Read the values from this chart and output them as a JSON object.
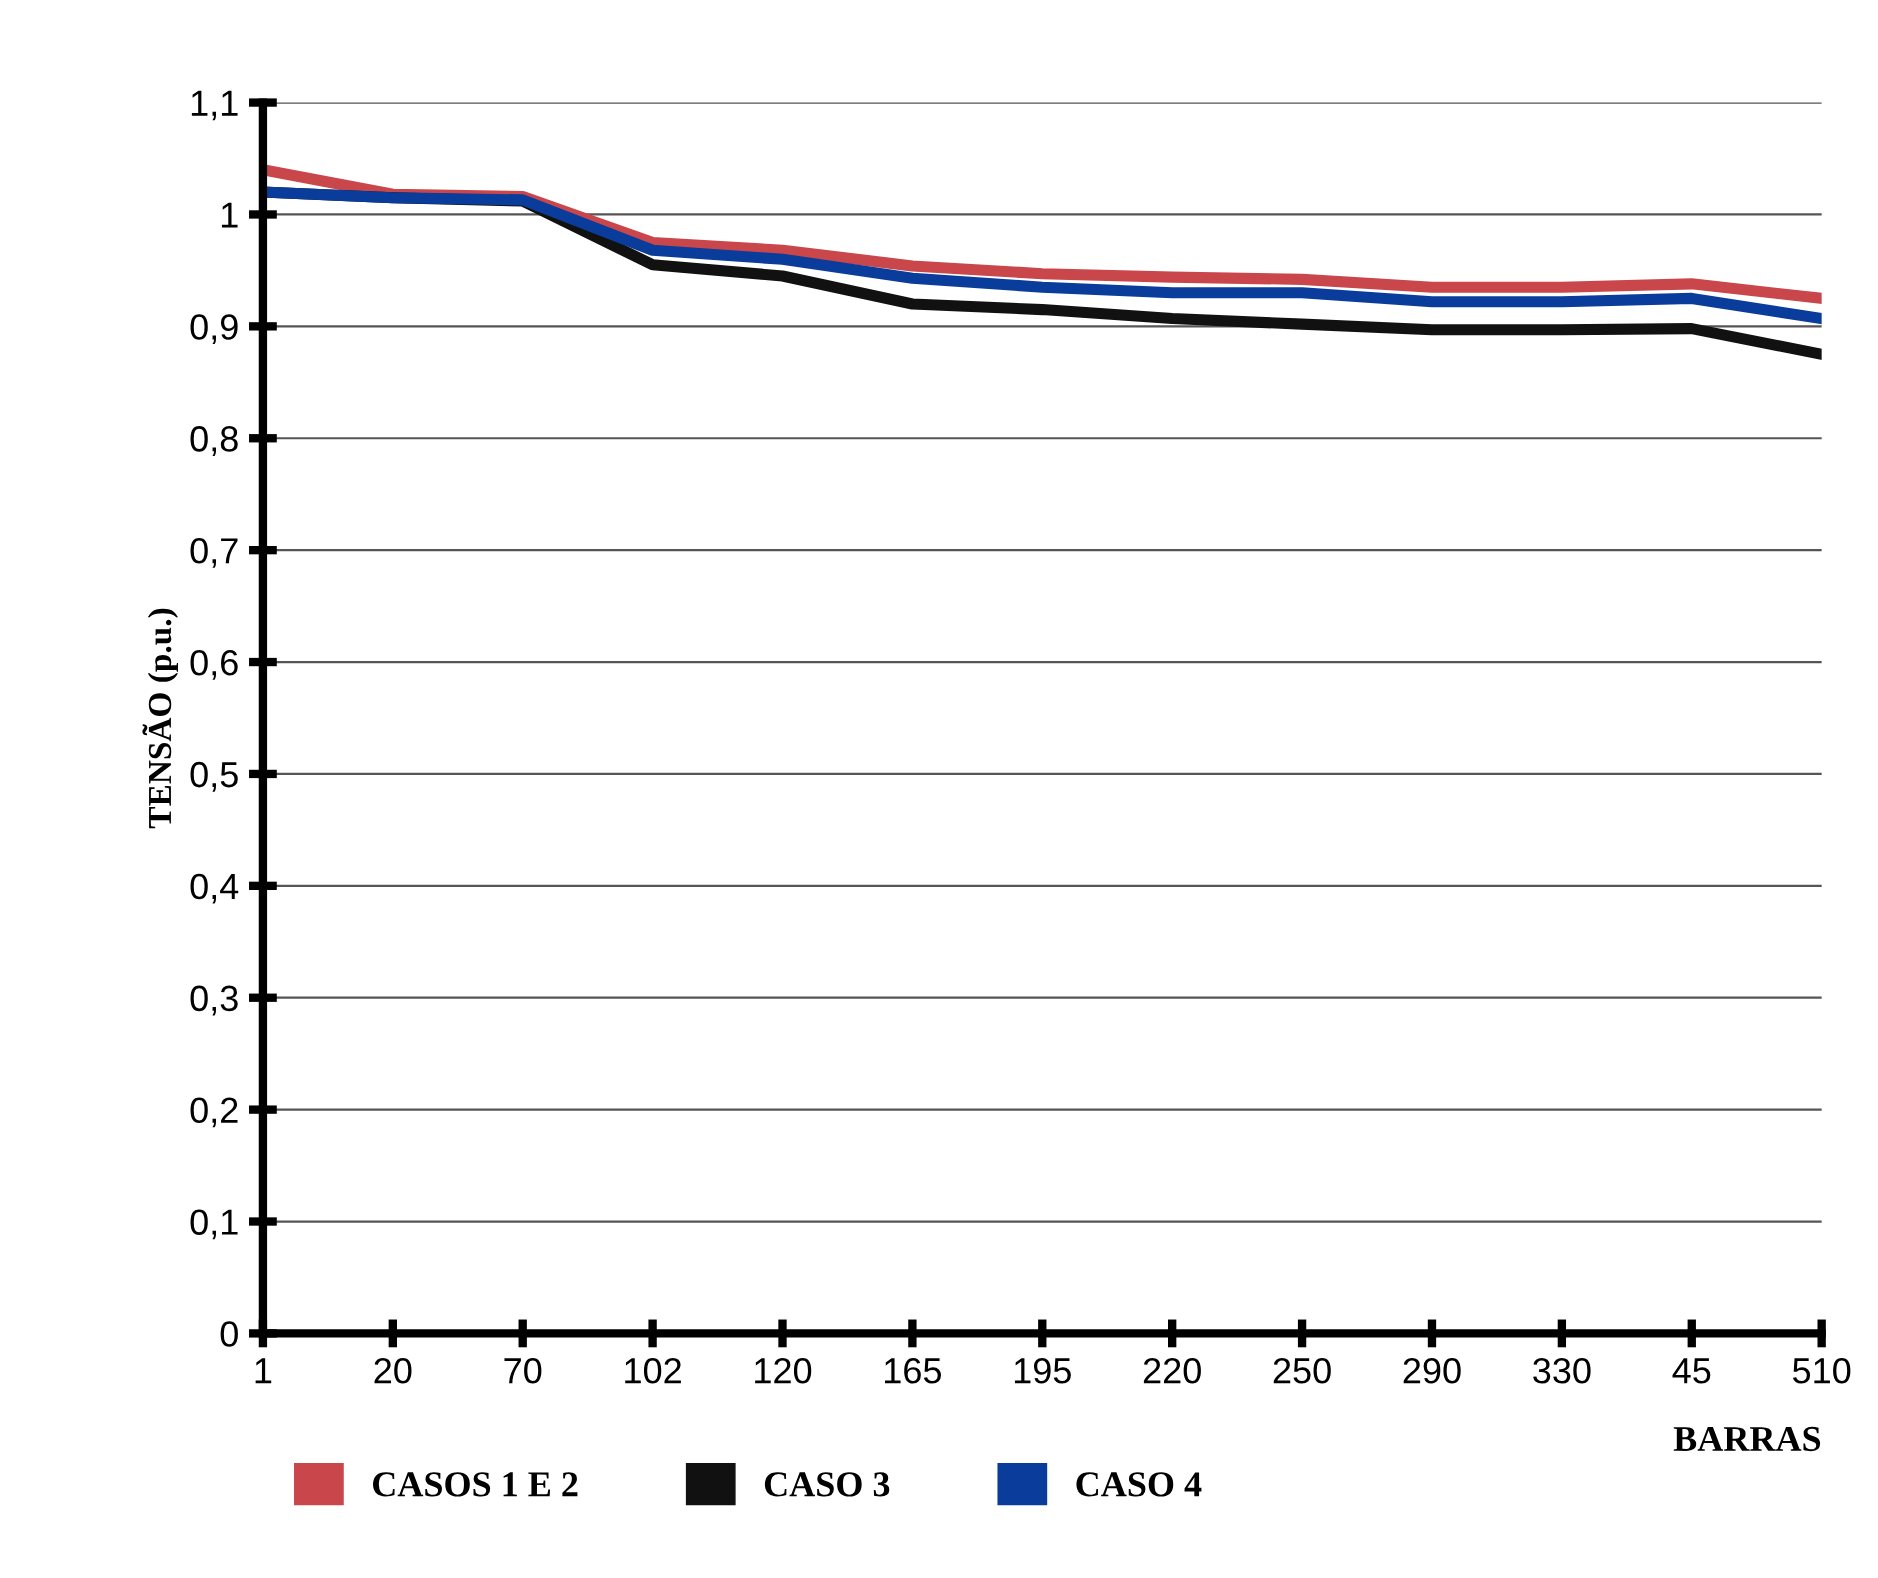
{
  "chart_data": {
    "type": "line",
    "xlabel": "BARRAS",
    "ylabel": "TENSÃO (p.u.)",
    "categories": [
      "1",
      "20",
      "70",
      "102",
      "120",
      "165",
      "195",
      "220",
      "250",
      "290",
      "330",
      "45",
      "510"
    ],
    "series": [
      {
        "name": "CASOS 1 E 2",
        "color": "#c9464b",
        "values": [
          1.04,
          1.018,
          1.016,
          0.975,
          0.968,
          0.954,
          0.947,
          0.944,
          0.942,
          0.935,
          0.935,
          0.938,
          0.925
        ]
      },
      {
        "name": "CASO 3",
        "color": "#111111",
        "values": [
          1.02,
          1.015,
          1.012,
          0.955,
          0.945,
          0.92,
          0.915,
          0.907,
          0.902,
          0.897,
          0.897,
          0.898,
          0.875
        ]
      },
      {
        "name": "CASO 4",
        "color": "#0a3c9c",
        "values": [
          1.02,
          1.015,
          1.013,
          0.968,
          0.96,
          0.943,
          0.935,
          0.93,
          0.93,
          0.922,
          0.922,
          0.925,
          0.907
        ]
      }
    ],
    "ylim": [
      0,
      1.1
    ],
    "yticks": [
      {
        "value": 0,
        "label": "0"
      },
      {
        "value": 0.1,
        "label": "0,1"
      },
      {
        "value": 0.2,
        "label": "0,2"
      },
      {
        "value": 0.3,
        "label": "0,3"
      },
      {
        "value": 0.4,
        "label": "0,4"
      },
      {
        "value": 0.5,
        "label": "0,5"
      },
      {
        "value": 0.6,
        "label": "0,6"
      },
      {
        "value": 0.7,
        "label": "0,7"
      },
      {
        "value": 0.8,
        "label": "0,8"
      },
      {
        "value": 0.9,
        "label": "0,9"
      },
      {
        "value": 1,
        "label": "1"
      },
      {
        "value": 1.1,
        "label": "1,1"
      }
    ],
    "grid": "y",
    "legend": "bottom",
    "marker": "none",
    "line_style": "solid"
  }
}
